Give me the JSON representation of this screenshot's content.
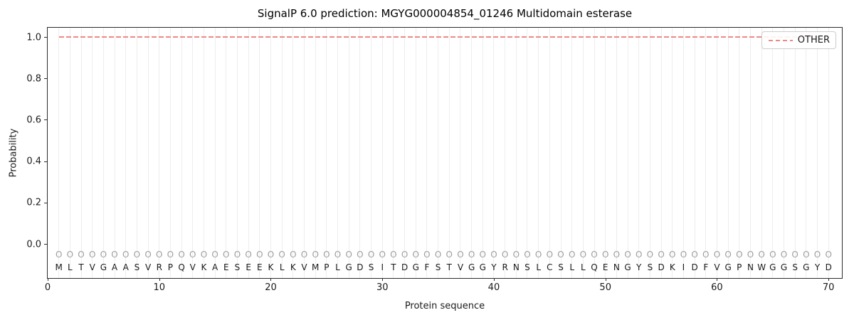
{
  "title": "SignalP 6.0 prediction: MGYG000004854_01246 Multidomain esterase",
  "legend": {
    "label": "OTHER",
    "line_style": "dashed",
    "line_color": "#ee8888",
    "position": "upper-right"
  },
  "colors": {
    "other_line": "#ee8888",
    "marker": "#9e9e9e",
    "letter": "#1a1a1a",
    "gridline": "#ededed",
    "spine": "#2b2b2b",
    "background": "#ffffff"
  },
  "chart_data": {
    "type": "line",
    "title": "SignalP 6.0 prediction: MGYG000004854_01246 Multidomain esterase",
    "xlabel": "Protein sequence",
    "ylabel": "Probability",
    "xlim": [
      0,
      71.2
    ],
    "ylim": [
      -0.165,
      1.045
    ],
    "xticks": [
      0,
      10,
      20,
      30,
      40,
      50,
      60,
      70
    ],
    "yticks": [
      0.0,
      0.2,
      0.4,
      0.6,
      0.8,
      1.0
    ],
    "grid": "vertical-per-residue",
    "legend_position": "upper-right",
    "sequence": "MLTVGAASVRPQVKAESEEKLKVMPLGDSITDGFSTVGGYRNSLCSLLQENGYSDKIDFVGPNWGGSGYD",
    "sequence_length": 70,
    "series": [
      {
        "name": "OTHER",
        "style": "dashed",
        "color": "#ee8888",
        "x_start": 1,
        "x_end": 70,
        "y_value": 1.0
      }
    ],
    "marker_row": {
      "symbol": "O",
      "y_value": -0.05
    },
    "letter_row": {
      "y_value": -0.112
    }
  }
}
